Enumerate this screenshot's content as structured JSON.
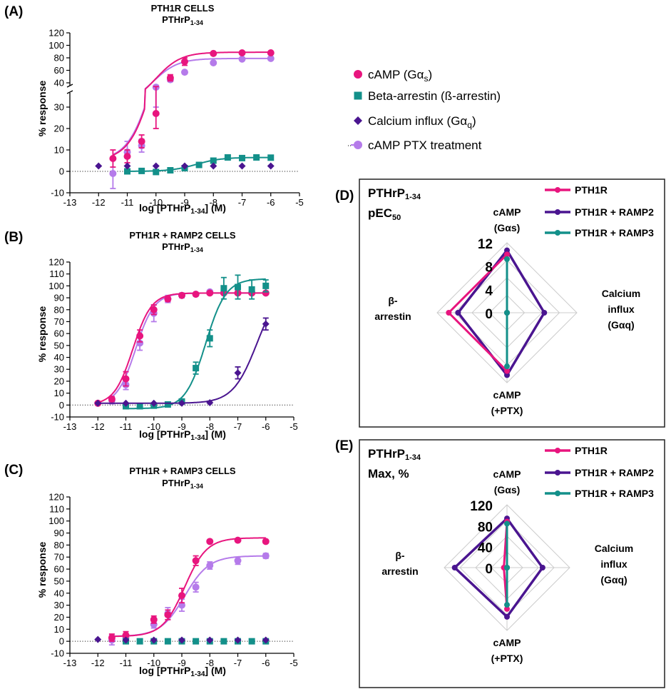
{
  "colors": {
    "camp": "#e8157e",
    "arrestin": "#13908a",
    "calcium": "#4a1590",
    "ptx": "#b57bea",
    "ramp2": "#4a1590",
    "ramp3": "#13908a",
    "grid": "#cccccc"
  },
  "legend_main": {
    "items": [
      {
        "key": "camp",
        "label": "cAMP (Gα",
        "sub": "s",
        "tail": ")",
        "marker": "circle"
      },
      {
        "key": "arrestin",
        "label": "Beta-arrestin (ß-arrestin)",
        "sub": "",
        "tail": "",
        "marker": "square"
      },
      {
        "key": "calcium",
        "label": "Calcium influx (Gα",
        "sub": "q",
        "tail": ")",
        "marker": "diamond"
      },
      {
        "key": "ptx",
        "label": "cAMP PTX treatment",
        "sub": "",
        "tail": "",
        "marker": "circle"
      }
    ]
  },
  "chart_data": [
    {
      "type": "scatter",
      "panel": "(A)",
      "title": "PTH1R CELLS",
      "subtitle": "PTHrP",
      "subtitle_sub": "1-34",
      "xlabel": "log [PTHrP",
      "xlabel_sub": "1-34",
      "xlabel_tail": "] (M)",
      "ylabel": "% response",
      "xlim": [
        -13,
        -5
      ],
      "x_ticks": [
        "-13",
        "-12",
        "-11",
        "-10",
        "-9",
        "-8",
        "-7",
        "-6",
        "-5"
      ],
      "y_broken": true,
      "y_ticks_lower": [
        "-10",
        "0",
        "10",
        "20",
        "30"
      ],
      "y_ticks_upper": [
        "40",
        "60",
        "80",
        "100",
        "120"
      ],
      "series": [
        {
          "name": "cAMP PTX treatment",
          "key": "ptx",
          "marker": "circle",
          "x": [
            -11.5,
            -11,
            -10.5,
            -10,
            -9.5,
            -9,
            -8,
            -7,
            -6
          ],
          "y": [
            -1,
            9,
            12,
            33,
            45,
            57,
            72,
            78,
            79
          ],
          "err": [
            7,
            5,
            3,
            3,
            3,
            2,
            1,
            1,
            1
          ],
          "fit": {
            "bottom": 5,
            "top": 79,
            "logEC50": -10.1,
            "hill": 1.0
          }
        },
        {
          "name": "cAMP (Gαs)",
          "key": "camp",
          "marker": "circle",
          "x": [
            -11.5,
            -11,
            -10.5,
            -10,
            -9.5,
            -9,
            -8,
            -7,
            -6
          ],
          "y": [
            6,
            7,
            14,
            27,
            48,
            74,
            87,
            88,
            88
          ],
          "err": [
            4,
            3,
            3,
            7,
            5,
            6,
            1,
            1,
            1
          ],
          "fit": {
            "bottom": 5,
            "top": 89,
            "logEC50": -10.0,
            "hill": 1.0
          }
        },
        {
          "name": "Beta-arrestin (ß-arrestin)",
          "key": "arrestin",
          "marker": "square",
          "x": [
            -11,
            -10.5,
            -10,
            -9.5,
            -9,
            -8.5,
            -8,
            -7.5,
            -7,
            -6.5,
            -6
          ],
          "y": [
            0,
            0.2,
            -0.3,
            0.5,
            1.5,
            3,
            5,
            6.5,
            6.2,
            6.5,
            6.4
          ],
          "err": [
            0,
            0,
            0,
            0,
            0.5,
            0.8,
            1,
            0.8,
            0.6,
            0.5,
            0.5
          ],
          "fit": {
            "bottom": 0,
            "top": 6.5,
            "logEC50": -8.6,
            "hill": 1.0
          }
        },
        {
          "name": "Calcium influx (Gαq)",
          "key": "calcium",
          "marker": "diamond",
          "x": [
            -12,
            -11,
            -10,
            -9,
            -8,
            -7,
            -6
          ],
          "y": [
            2.5,
            2.5,
            2.5,
            2.5,
            2.5,
            2.5,
            2.5
          ],
          "err": [
            0,
            0,
            0,
            0,
            0,
            0,
            0
          ],
          "fit": null
        }
      ]
    },
    {
      "type": "scatter",
      "panel": "(B)",
      "title": "PTH1R + RAMP2 CELLS",
      "subtitle": "PTHrP",
      "subtitle_sub": "1-34",
      "xlabel": "log [PTHrP",
      "xlabel_sub": "1-34",
      "xlabel_tail": "] (M)",
      "ylabel": "% response",
      "xlim": [
        -13,
        -5
      ],
      "ylim": [
        -10,
        120
      ],
      "x_ticks": [
        "-13",
        "-12",
        "-11",
        "-10",
        "-9",
        "-8",
        "-7",
        "-6",
        "-5"
      ],
      "y_ticks": [
        "-10",
        "0",
        "10",
        "20",
        "30",
        "40",
        "50",
        "60",
        "70",
        "80",
        "90",
        "100",
        "110",
        "120"
      ],
      "series": [
        {
          "name": "cAMP PTX treatment",
          "key": "ptx",
          "marker": "circle",
          "x": [
            -11.5,
            -11,
            -10.5,
            -10,
            -9.5,
            -9,
            -8.5,
            -8,
            -7.5,
            -7,
            -6.5,
            -6
          ],
          "y": [
            4,
            17,
            52,
            77,
            89,
            92,
            93,
            95,
            94,
            94,
            94,
            94
          ],
          "err": [
            3,
            4,
            6,
            7,
            3,
            2,
            1,
            1,
            1,
            1,
            1,
            1
          ],
          "fit": {
            "bottom": 0,
            "top": 94,
            "logEC50": -10.65,
            "hill": 1.3
          }
        },
        {
          "name": "cAMP (Gαs)",
          "key": "camp",
          "marker": "circle",
          "x": [
            -12,
            -11.5,
            -11,
            -10.5,
            -10,
            -9.5,
            -9,
            -8.5,
            -8,
            -7.5,
            -7,
            -6.5,
            -6
          ],
          "y": [
            1.5,
            5,
            22,
            58,
            80,
            89,
            92,
            93,
            94,
            94,
            94,
            94,
            94
          ],
          "err": [
            0,
            2,
            6,
            5,
            4,
            2,
            1,
            1,
            1,
            1,
            1,
            1,
            1
          ],
          "fit": {
            "bottom": 0,
            "top": 94,
            "logEC50": -10.75,
            "hill": 1.3
          }
        },
        {
          "name": "Beta-arrestin (ß-arrestin)",
          "key": "arrestin",
          "marker": "square",
          "x": [
            -11,
            -10.5,
            -10,
            -9.5,
            -9,
            -8.5,
            -8,
            -7.5,
            -7,
            -6.5,
            -6
          ],
          "y": [
            -1,
            -1,
            -0.5,
            0.5,
            3,
            31,
            56,
            98,
            99,
            97,
            100
          ],
          "err": [
            0,
            0,
            0,
            0,
            1,
            5,
            7,
            9,
            10,
            8,
            5
          ],
          "fit": {
            "bottom": -3,
            "top": 106,
            "logEC50": -8.15,
            "hill": 1.2
          }
        },
        {
          "name": "Calcium influx (Gαq)",
          "key": "calcium",
          "marker": "diamond",
          "x": [
            -12,
            -11,
            -10,
            -9,
            -8,
            -7,
            -6
          ],
          "y": [
            1.5,
            1.5,
            1.5,
            1.5,
            2,
            27,
            68
          ],
          "err": [
            0,
            0,
            0,
            0,
            0,
            5,
            5
          ],
          "fit": {
            "bottom": 1.5,
            "top": 104,
            "logEC50": -6.3,
            "hill": 1.0
          }
        }
      ]
    },
    {
      "type": "scatter",
      "panel": "(C)",
      "title": "PTH1R + RAMP3 CELLS",
      "subtitle": "PTHrP",
      "subtitle_sub": "1-34",
      "xlabel": "log [PTHrP",
      "xlabel_sub": "1-34",
      "xlabel_tail": "] (M)",
      "ylabel": "% response",
      "xlim": [
        -13,
        -5
      ],
      "ylim": [
        -10,
        120
      ],
      "x_ticks": [
        "-13",
        "-12",
        "-11",
        "-10",
        "-9",
        "-8",
        "-7",
        "-6",
        "-5"
      ],
      "y_ticks": [
        "-10",
        "0",
        "10",
        "20",
        "30",
        "40",
        "50",
        "60",
        "70",
        "80",
        "90",
        "100",
        "110",
        "120"
      ],
      "series": [
        {
          "name": "cAMP PTX treatment",
          "key": "ptx",
          "marker": "circle",
          "x": [
            -11.5,
            -11,
            -10,
            -9.5,
            -9,
            -8.5,
            -8,
            -7,
            -6
          ],
          "y": [
            1,
            3,
            14,
            23,
            30,
            45,
            63,
            67,
            71
          ],
          "err": [
            4,
            3,
            3,
            5,
            5,
            4,
            3,
            3,
            2
          ],
          "fit": {
            "bottom": 4,
            "top": 71,
            "logEC50": -8.9,
            "hill": 1.0
          }
        },
        {
          "name": "cAMP (Gαs)",
          "key": "camp",
          "marker": "circle",
          "x": [
            -11.5,
            -11,
            -10,
            -9.5,
            -9,
            -8.5,
            -8,
            -7,
            -6
          ],
          "y": [
            3,
            5,
            18,
            22,
            38,
            67,
            83,
            84,
            83
          ],
          "err": [
            3,
            3,
            3,
            4,
            6,
            4,
            1,
            1,
            1
          ],
          "fit": {
            "bottom": 4,
            "top": 86,
            "logEC50": -8.9,
            "hill": 1.1
          }
        },
        {
          "name": "Beta-arrestin (ß-arrestin)",
          "key": "arrestin",
          "marker": "square",
          "x": [
            -11,
            -10.5,
            -10,
            -9.5,
            -9,
            -8.5,
            -8,
            -7.5,
            -7,
            -6.5,
            -6
          ],
          "y": [
            0,
            0,
            0,
            0,
            0,
            0,
            0,
            0,
            0,
            0,
            0
          ],
          "err": [
            0,
            0,
            0,
            0,
            0,
            0,
            0,
            0,
            0,
            0,
            0
          ],
          "fit": null
        },
        {
          "name": "Calcium influx (Gαq)",
          "key": "calcium",
          "marker": "diamond",
          "x": [
            -12,
            -11,
            -10,
            -9,
            -8,
            -7,
            -6
          ],
          "y": [
            1.5,
            1,
            1,
            1,
            1,
            1,
            1
          ],
          "err": [
            0,
            0,
            0,
            0,
            0,
            0,
            0
          ],
          "fit": null
        }
      ]
    },
    {
      "type": "radar",
      "panel": "(D)",
      "title_line1": "PTHrP",
      "title_line1_sub": "1-34",
      "title_line2": "pEC",
      "title_line2_sub": "50",
      "axes": [
        {
          "label_lines": [
            "cAMP",
            "(Gαs)"
          ]
        },
        {
          "label_lines": [
            "Calcium",
            "influx",
            "(Gαq)"
          ]
        },
        {
          "label_lines": [
            "cAMP",
            "(+PTX)"
          ]
        },
        {
          "label_lines": [
            "β-",
            "arrestin"
          ]
        }
      ],
      "rmax": 12,
      "ring_labels": [
        "0",
        "4",
        "8",
        "12"
      ],
      "series": [
        {
          "name": "PTH1R",
          "key": "camp",
          "values": [
            10,
            0,
            10,
            10
          ]
        },
        {
          "name": "PTH1R + RAMP2",
          "key": "ramp2",
          "values": [
            10.7,
            6.4,
            10.7,
            8.4
          ]
        },
        {
          "name": "PTH1R + RAMP3",
          "key": "ramp3",
          "values": [
            9.2,
            0,
            9.2,
            0
          ]
        }
      ]
    },
    {
      "type": "radar",
      "panel": "(E)",
      "title_line1": "PTHrP",
      "title_line1_sub": "1-34",
      "title_line2": "Max, %",
      "title_line2_sub": "",
      "axes": [
        {
          "label_lines": [
            "cAMP",
            "(Gαs)"
          ]
        },
        {
          "label_lines": [
            "Calcium",
            "influx",
            "(Gαq)"
          ]
        },
        {
          "label_lines": [
            "cAMP",
            "(+PTX)"
          ]
        },
        {
          "label_lines": [
            "β-",
            "arrestin"
          ]
        }
      ],
      "rmax": 120,
      "ring_labels": [
        "0",
        "40",
        "80",
        "120"
      ],
      "series": [
        {
          "name": "PTH1R",
          "key": "camp",
          "values": [
            88,
            0,
            79,
            6
          ]
        },
        {
          "name": "PTH1R + RAMP2",
          "key": "ramp2",
          "values": [
            94,
            68,
            94,
            100
          ]
        },
        {
          "name": "PTH1R + RAMP3",
          "key": "ramp3",
          "values": [
            84,
            0,
            71,
            0
          ]
        }
      ]
    }
  ]
}
